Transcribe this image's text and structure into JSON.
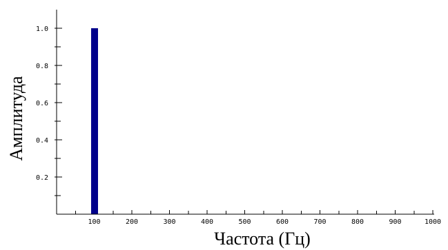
{
  "chart_data": {
    "type": "bar",
    "x": [
      100
    ],
    "values": [
      1.0
    ],
    "xlabel": "Частота (Гц)",
    "ylabel": "Амплитуда",
    "xlim": [
      0,
      1000
    ],
    "ylim": [
      0,
      1.1
    ],
    "x_ticks": [
      100,
      200,
      300,
      400,
      500,
      600,
      700,
      800,
      900,
      1000
    ],
    "x_tick_labels": [
      "100",
      "200",
      "300",
      "400",
      "500",
      "600",
      "700",
      "800",
      "900",
      "1000"
    ],
    "x_minor_step": 50,
    "y_ticks": [
      0.2,
      0.4,
      0.6,
      0.8,
      1.0
    ],
    "y_tick_labels": [
      "0.2",
      "0.4",
      "0.6",
      "0.8",
      "1.0"
    ],
    "y_minor_step": 0.1,
    "bar_color": "#00008b",
    "grid": false,
    "legend": "none"
  }
}
